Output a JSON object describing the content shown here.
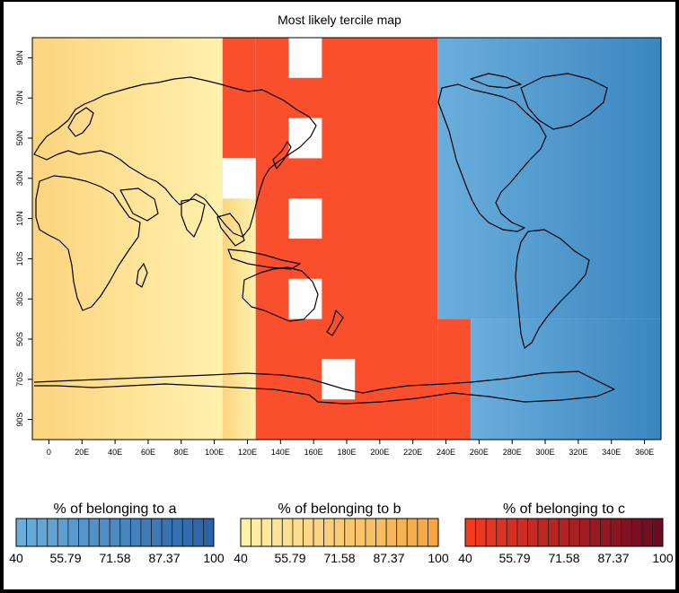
{
  "chart_data": {
    "type": "heatmap",
    "title": "Most likely tercile map",
    "x_ticks": [
      "0",
      "20E",
      "40E",
      "60E",
      "80E",
      "100E",
      "120E",
      "140E",
      "160E",
      "180E",
      "200E",
      "220E",
      "240E",
      "260E",
      "280E",
      "300E",
      "320E",
      "340E",
      "360E"
    ],
    "x_tick_values": [
      0,
      20,
      40,
      60,
      80,
      100,
      120,
      140,
      160,
      180,
      200,
      220,
      240,
      260,
      280,
      300,
      320,
      340,
      360
    ],
    "y_ticks": [
      "90N",
      "70N",
      "50N",
      "30N",
      "10N",
      "10S",
      "30S",
      "50S",
      "70S",
      "90S"
    ],
    "y_tick_values": [
      90,
      70,
      50,
      30,
      10,
      -10,
      -30,
      -50,
      -70,
      -90
    ],
    "xlim": [
      -10,
      370
    ],
    "ylim": [
      -100,
      100
    ],
    "regions": [
      {
        "category": "b",
        "lon": [
          -10,
          105
        ],
        "lat": [
          -100,
          100
        ]
      },
      {
        "category": "b",
        "lon": [
          105,
          125
        ],
        "lat": [
          -100,
          40
        ]
      },
      {
        "category": "c",
        "lon": [
          105,
          125
        ],
        "lat": [
          40,
          100
        ]
      },
      {
        "category": "c",
        "lon": [
          125,
          235
        ],
        "lat": [
          -100,
          100
        ]
      },
      {
        "category": "c",
        "lon": [
          235,
          255
        ],
        "lat": [
          -100,
          -40
        ]
      },
      {
        "category": "a",
        "lon": [
          235,
          370
        ],
        "lat": [
          -40,
          100
        ]
      },
      {
        "category": "a",
        "lon": [
          255,
          370
        ],
        "lat": [
          -100,
          -40
        ]
      }
    ],
    "missing_cells": [
      {
        "lon": [
          145,
          165
        ],
        "lat": [
          80,
          100
        ]
      },
      {
        "lon": [
          145,
          165
        ],
        "lat": [
          40,
          60
        ]
      },
      {
        "lon": [
          105,
          125
        ],
        "lat": [
          20,
          40
        ]
      },
      {
        "lon": [
          145,
          165
        ],
        "lat": [
          0,
          20
        ]
      },
      {
        "lon": [
          145,
          165
        ],
        "lat": [
          -40,
          -20
        ]
      },
      {
        "lon": [
          165,
          185
        ],
        "lat": [
          -80,
          -60
        ]
      }
    ],
    "legends": [
      {
        "title": "% of belonging to a",
        "category": "a",
        "ticks": [
          "40",
          "55.79",
          "71.58",
          "87.37",
          "100"
        ],
        "colors": [
          "#6aaedc",
          "#2a64a8"
        ]
      },
      {
        "title": "% of belonging to b",
        "category": "b",
        "ticks": [
          "40",
          "55.79",
          "71.58",
          "87.37",
          "100"
        ],
        "colors": [
          "#fff0a8",
          "#f5a640"
        ]
      },
      {
        "title": "% of belonging to c",
        "category": "c",
        "ticks": [
          "40",
          "55.79",
          "71.58",
          "87.37",
          "100"
        ],
        "colors": [
          "#f23a22",
          "#6d0b22"
        ]
      }
    ]
  }
}
